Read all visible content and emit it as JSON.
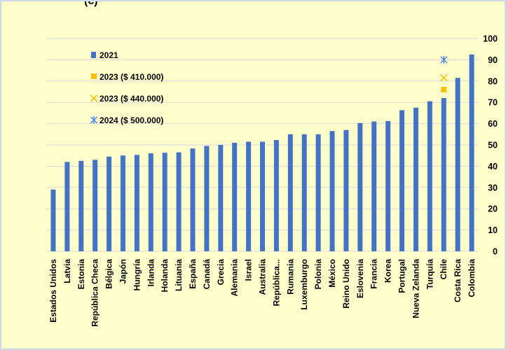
{
  "title_fragment": "(c)",
  "chart_data": {
    "type": "bar",
    "categories": [
      "Estados Unidos",
      "Latvia",
      "Estonia",
      "República Checa",
      "Bélgica",
      "Japón",
      "Hungría",
      "Irlanda",
      "Holanda",
      "Lituania",
      "España",
      "Canadá",
      "Grecia",
      "Alemania",
      "Israel",
      "Australia",
      "República...",
      "Rumania",
      "Luxemburgo",
      "Polonia",
      "México",
      "Reino Unido",
      "Eslovenia",
      "Francia",
      "Korea",
      "Portugal",
      "Nueva Zelanda",
      "Turquía",
      "Chile",
      "Costa Rica",
      "Colombia"
    ],
    "series": [
      {
        "name": "2021",
        "kind": "bar",
        "color": "#4472C4",
        "values": [
          29,
          42,
          42.5,
          43,
          44.5,
          45,
          45.3,
          46,
          46.3,
          46.5,
          48.3,
          49.5,
          50,
          51,
          51.5,
          51.5,
          52.3,
          55,
          55,
          55,
          56.5,
          57,
          60.3,
          61,
          61.2,
          66.3,
          67.5,
          70.5,
          72,
          81.5,
          92.5
        ]
      },
      {
        "name": "2023 ($ 410.000)",
        "kind": "square-marker",
        "color": "#FFC000",
        "category": "Chile",
        "value": 76
      },
      {
        "name": "2023 ($ 440.000)",
        "kind": "x-marker",
        "color": "#FFC000",
        "category": "Chile",
        "value": 81.5
      },
      {
        "name": "2024 ($ 500.000)",
        "kind": "star-marker",
        "color": "#4A86E8",
        "category": "Chile",
        "value": 90
      }
    ],
    "yaxis": {
      "min": 0,
      "max": 100,
      "step": 10,
      "position": "right",
      "ticks": [
        "0",
        "10",
        "20",
        "30",
        "40",
        "50",
        "60",
        "70",
        "80",
        "90",
        "100"
      ]
    },
    "grid": true,
    "legend": {
      "placement": "top-left"
    }
  }
}
